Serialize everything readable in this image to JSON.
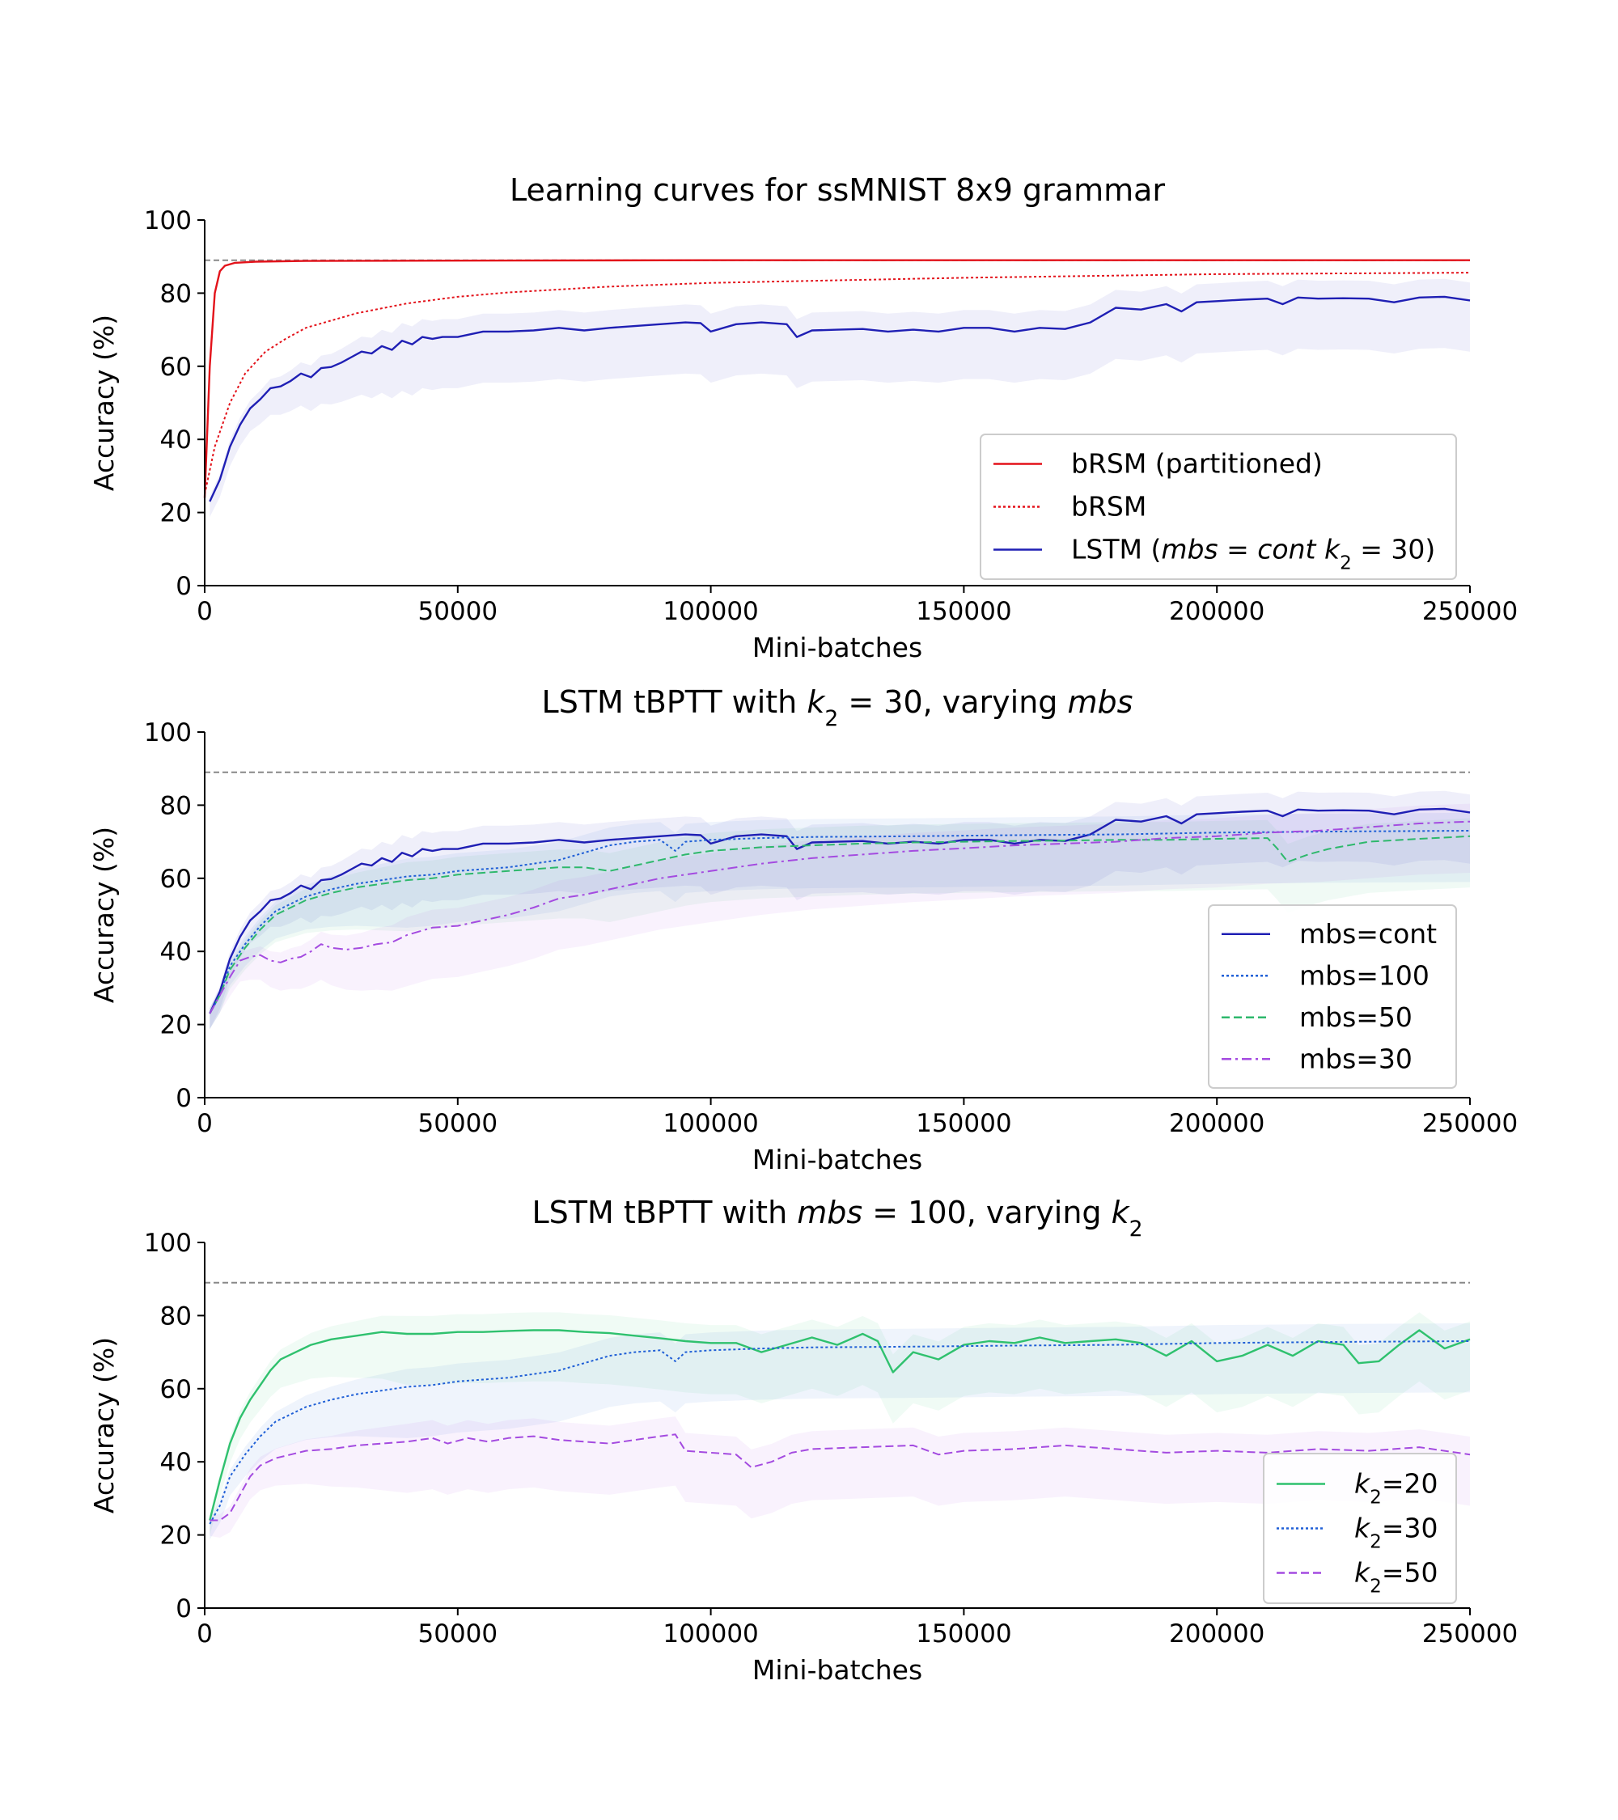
{
  "chart_data": [
    {
      "type": "line",
      "title": "Learning curves for ssMNIST 8x9 grammar",
      "xlabel": "Mini-batches",
      "ylabel": "Accuracy (%)",
      "xlim": [
        0,
        250000
      ],
      "ylim": [
        0,
        100
      ],
      "xticks": [
        "0",
        "50000",
        "100000",
        "150000",
        "200000",
        "250000"
      ],
      "yticks": [
        "0",
        "20",
        "40",
        "60",
        "80",
        "100"
      ],
      "reference_line": 89,
      "legend_position": "lower right",
      "series": [
        {
          "name": "bRSM (partitioned)",
          "color": "#e3121a",
          "dash": "solid",
          "x": [
            0,
            1000,
            2000,
            3000,
            4000,
            6000,
            10000,
            20000,
            50000,
            100000,
            250000
          ],
          "y": [
            24,
            60,
            80,
            86,
            87.5,
            88.3,
            88.6,
            88.8,
            88.9,
            89,
            89
          ]
        },
        {
          "name": "bRSM",
          "color": "#e3121a",
          "dash": "dotted",
          "x": [
            0,
            2000,
            5000,
            8000,
            12000,
            16000,
            20000,
            30000,
            40000,
            50000,
            60000,
            80000,
            100000,
            150000,
            200000,
            250000
          ],
          "y": [
            25,
            38,
            50,
            58,
            64,
            67.5,
            70.5,
            74.5,
            77.2,
            79,
            80.2,
            81.8,
            82.8,
            84.2,
            85.2,
            85.6
          ]
        },
        {
          "name": "LSTM (mbs=cont k2=30)",
          "color": "#1f1fb4",
          "dash": "solid",
          "x": [
            1000,
            3000,
            5000,
            7000,
            9000,
            11000,
            13000,
            15000,
            17000,
            19000,
            21000,
            23000,
            25000,
            27000,
            29000,
            31000,
            33000,
            35000,
            37000,
            39000,
            41000,
            43000,
            45000,
            47000,
            50000,
            55000,
            60000,
            65000,
            70000,
            75000,
            80000,
            85000,
            90000,
            95000,
            98000,
            100000,
            105000,
            110000,
            115000,
            117000,
            120000,
            125000,
            130000,
            135000,
            140000,
            145000,
            150000,
            155000,
            160000,
            165000,
            170000,
            175000,
            180000,
            185000,
            190000,
            193000,
            196000,
            200000,
            205000,
            210000,
            213000,
            216000,
            220000,
            225000,
            230000,
            235000,
            240000,
            245000,
            250000
          ],
          "y": [
            23,
            29,
            38,
            44,
            48.5,
            51,
            54,
            54.5,
            56,
            58,
            57,
            59.5,
            59.8,
            61,
            62.5,
            64,
            63.5,
            65.5,
            64.5,
            67,
            66,
            68,
            67.5,
            68,
            68,
            69.5,
            69.5,
            69.8,
            70.5,
            69.8,
            70.5,
            71,
            71.5,
            72,
            71.8,
            69.5,
            71.5,
            72,
            71.5,
            68,
            69.8,
            70,
            70.2,
            69.5,
            70,
            69.5,
            70.5,
            70.5,
            69.5,
            70.5,
            70.2,
            72,
            76,
            75.5,
            77,
            75,
            77.5,
            77.8,
            78.2,
            78.5,
            77,
            78.8,
            78.5,
            78.6,
            78.5,
            77.5,
            78.8,
            79,
            78
          ]
        }
      ]
    },
    {
      "type": "line",
      "title": "LSTM tBPTT with k2=30, varying mbs",
      "xlabel": "Mini-batches",
      "ylabel": "Accuracy (%)",
      "xlim": [
        0,
        250000
      ],
      "ylim": [
        0,
        100
      ],
      "xticks": [
        "0",
        "50000",
        "100000",
        "150000",
        "200000",
        "250000"
      ],
      "yticks": [
        "0",
        "20",
        "40",
        "60",
        "80",
        "100"
      ],
      "reference_line": 89,
      "legend_position": "lower right",
      "series": [
        {
          "name": "mbs=cont",
          "color": "#1f1fb4",
          "dash": "solid",
          "x": [
            1000,
            3000,
            5000,
            7000,
            9000,
            11000,
            13000,
            15000,
            17000,
            19000,
            21000,
            23000,
            25000,
            27000,
            29000,
            31000,
            33000,
            35000,
            37000,
            39000,
            41000,
            43000,
            45000,
            47000,
            50000,
            55000,
            60000,
            65000,
            70000,
            75000,
            80000,
            85000,
            90000,
            95000,
            98000,
            100000,
            105000,
            110000,
            115000,
            117000,
            120000,
            125000,
            130000,
            135000,
            140000,
            145000,
            150000,
            155000,
            160000,
            165000,
            170000,
            175000,
            180000,
            185000,
            190000,
            193000,
            196000,
            200000,
            205000,
            210000,
            213000,
            216000,
            220000,
            225000,
            230000,
            235000,
            240000,
            245000,
            250000
          ],
          "y": [
            23,
            29,
            38,
            44,
            48.5,
            51,
            54,
            54.5,
            56,
            58,
            57,
            59.5,
            59.8,
            61,
            62.5,
            64,
            63.5,
            65.5,
            64.5,
            67,
            66,
            68,
            67.5,
            68,
            68,
            69.5,
            69.5,
            69.8,
            70.5,
            69.8,
            70.5,
            71,
            71.5,
            72,
            71.8,
            69.5,
            71.5,
            72,
            71.5,
            68,
            69.8,
            70,
            70.2,
            69.5,
            70,
            69.5,
            70.5,
            70.5,
            69.5,
            70.5,
            70.2,
            72,
            76,
            75.5,
            77,
            75,
            77.5,
            77.8,
            78.2,
            78.5,
            77,
            78.8,
            78.5,
            78.6,
            78.5,
            77.5,
            78.8,
            79,
            78
          ]
        },
        {
          "name": "mbs=100",
          "color": "#1f5fd6",
          "dash": "dotted",
          "x": [
            1000,
            3000,
            5000,
            8000,
            11000,
            14000,
            17000,
            20000,
            25000,
            30000,
            35000,
            40000,
            45000,
            50000,
            55000,
            60000,
            65000,
            70000,
            75000,
            80000,
            85000,
            90000,
            93000,
            95000,
            100000,
            110000,
            120000,
            140000,
            160000,
            180000,
            200000,
            225000,
            250000
          ],
          "y": [
            23,
            28,
            36,
            42,
            47,
            51,
            53,
            55,
            57,
            58.5,
            59.5,
            60.5,
            61,
            62,
            62.5,
            63,
            64,
            65,
            67,
            69,
            70,
            70.5,
            67.5,
            70,
            70.5,
            71,
            71.3,
            71.5,
            71.8,
            72,
            72.5,
            72.8,
            73
          ]
        },
        {
          "name": "mbs=50",
          "color": "#2eb86c",
          "dash": "dashed",
          "x": [
            1000,
            3000,
            5000,
            8000,
            11000,
            14000,
            17000,
            20000,
            25000,
            30000,
            35000,
            40000,
            45000,
            50000,
            55000,
            60000,
            65000,
            70000,
            75000,
            80000,
            85000,
            90000,
            95000,
            100000,
            110000,
            120000,
            130000,
            140000,
            150000,
            160000,
            170000,
            180000,
            190000,
            200000,
            210000,
            212000,
            214000,
            218000,
            222000,
            226000,
            230000,
            240000,
            250000
          ],
          "y": [
            23,
            28,
            35,
            41,
            46,
            50,
            52,
            54,
            56,
            57.5,
            58.5,
            59.5,
            60,
            61,
            61.5,
            62,
            62.5,
            63,
            63,
            62,
            63.5,
            65,
            66.5,
            67.5,
            68.5,
            69,
            69.5,
            69.8,
            70,
            70.2,
            70.3,
            70.5,
            70.5,
            70.8,
            71,
            68,
            64.5,
            66.5,
            68,
            69,
            70,
            70.8,
            71.5
          ]
        },
        {
          "name": "mbs=30",
          "color": "#a44be0",
          "dash": "dashdot",
          "x": [
            1000,
            3000,
            5000,
            7000,
            9000,
            11000,
            13000,
            15000,
            17000,
            19000,
            21000,
            23000,
            25000,
            28000,
            31000,
            34000,
            37000,
            40000,
            45000,
            50000,
            55000,
            60000,
            65000,
            70000,
            75000,
            80000,
            85000,
            90000,
            100000,
            110000,
            120000,
            130000,
            140000,
            150000,
            160000,
            170000,
            180000,
            190000,
            200000,
            210000,
            220000,
            230000,
            240000,
            250000
          ],
          "y": [
            23,
            28,
            33,
            37.5,
            38.5,
            39,
            37.5,
            37,
            38,
            38.5,
            40,
            42,
            41,
            40.5,
            41,
            42,
            42.5,
            44.5,
            46.5,
            47,
            48.5,
            50,
            52,
            54.5,
            55.5,
            57,
            58.5,
            60,
            62,
            64,
            65.5,
            66.5,
            67.5,
            68.2,
            69,
            69.5,
            70,
            71,
            71.5,
            72.5,
            73,
            74,
            75,
            75.5
          ]
        }
      ]
    },
    {
      "type": "line",
      "title": "LSTM tBPTT with mbs=100, varying k2",
      "xlabel": "Mini-batches",
      "ylabel": "Accuracy (%)",
      "xlim": [
        0,
        250000
      ],
      "ylim": [
        0,
        100
      ],
      "xticks": [
        "0",
        "50000",
        "100000",
        "150000",
        "200000",
        "250000"
      ],
      "yticks": [
        "0",
        "20",
        "40",
        "60",
        "80",
        "100"
      ],
      "reference_line": 89,
      "legend_position": "lower right",
      "series": [
        {
          "name": "k2=20",
          "color": "#2fc16e",
          "dash": "solid",
          "x": [
            1000,
            3000,
            5000,
            7000,
            9000,
            11000,
            13000,
            15000,
            18000,
            21000,
            25000,
            30000,
            35000,
            40000,
            45000,
            50000,
            55000,
            60000,
            65000,
            70000,
            75000,
            80000,
            85000,
            90000,
            95000,
            100000,
            105000,
            110000,
            115000,
            120000,
            125000,
            130000,
            133000,
            136000,
            140000,
            145000,
            150000,
            155000,
            160000,
            165000,
            170000,
            175000,
            180000,
            185000,
            190000,
            195000,
            200000,
            205000,
            210000,
            215000,
            220000,
            225000,
            228000,
            232000,
            236000,
            240000,
            245000,
            250000
          ],
          "y": [
            24,
            35,
            45,
            52,
            57,
            61,
            65,
            68,
            70,
            72,
            73.5,
            74.5,
            75.5,
            75,
            75,
            75.5,
            75.5,
            75.8,
            76,
            76,
            75.5,
            75.2,
            74.5,
            73.8,
            73,
            72.5,
            72.5,
            70,
            72,
            74,
            72,
            75,
            73,
            64.5,
            70,
            68,
            72,
            73,
            72.5,
            74,
            72.5,
            73,
            73.5,
            72.5,
            69,
            73,
            67.5,
            69,
            72,
            69,
            73,
            72,
            67,
            67.5,
            72,
            76,
            71,
            73.5
          ]
        },
        {
          "name": "k2=30",
          "color": "#1f5fd6",
          "dash": "dotted",
          "x": [
            1000,
            3000,
            5000,
            8000,
            11000,
            14000,
            17000,
            20000,
            25000,
            30000,
            35000,
            40000,
            45000,
            50000,
            55000,
            60000,
            65000,
            70000,
            75000,
            80000,
            85000,
            90000,
            93000,
            95000,
            100000,
            110000,
            120000,
            140000,
            160000,
            180000,
            200000,
            225000,
            250000
          ],
          "y": [
            23,
            28,
            36,
            42,
            47,
            51,
            53,
            55,
            57,
            58.5,
            59.5,
            60.5,
            61,
            62,
            62.5,
            63,
            64,
            65,
            67,
            69,
            70,
            70.5,
            67.5,
            70,
            70.5,
            71,
            71.3,
            71.5,
            71.8,
            72,
            72.5,
            72.8,
            73
          ]
        },
        {
          "name": "k2=50",
          "color": "#a44be0",
          "dash": "dashed",
          "x": [
            1000,
            3000,
            5000,
            7000,
            9000,
            11000,
            14000,
            17000,
            20000,
            25000,
            30000,
            35000,
            40000,
            45000,
            48000,
            52000,
            56000,
            60000,
            65000,
            70000,
            75000,
            80000,
            85000,
            90000,
            93000,
            95000,
            100000,
            105000,
            108000,
            112000,
            116000,
            120000,
            130000,
            140000,
            145000,
            150000,
            160000,
            170000,
            180000,
            190000,
            200000,
            210000,
            220000,
            230000,
            240000,
            250000
          ],
          "y": [
            24,
            24,
            26,
            31,
            36,
            39,
            41,
            42,
            43,
            43.5,
            44.5,
            45,
            45.5,
            46.5,
            45,
            46.5,
            45.5,
            46.5,
            47,
            46,
            45.5,
            45,
            46,
            47,
            47.5,
            43,
            42.5,
            42,
            38.5,
            40,
            42.5,
            43.5,
            44,
            44.5,
            42,
            43,
            43.5,
            44.5,
            43.5,
            42.5,
            43,
            42.5,
            43.5,
            43,
            44,
            42
          ]
        }
      ]
    }
  ]
}
